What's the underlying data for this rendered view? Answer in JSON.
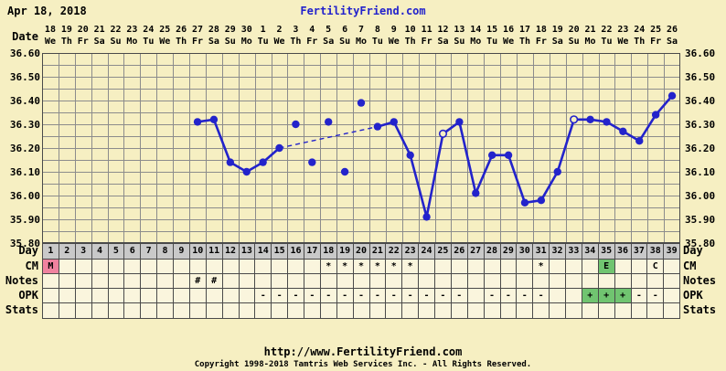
{
  "header": {
    "date_label": "Apr 18, 2018",
    "site_link": "FertilityFriend.com"
  },
  "axis": {
    "date_label": "Date",
    "dates": [
      "18",
      "19",
      "20",
      "21",
      "22",
      "23",
      "24",
      "25",
      "26",
      "27",
      "28",
      "29",
      "30",
      "1",
      "2",
      "3",
      "4",
      "5",
      "6",
      "7",
      "8",
      "9",
      "10",
      "11",
      "12",
      "13",
      "14",
      "15",
      "16",
      "17",
      "18",
      "19",
      "20",
      "21",
      "22",
      "23",
      "24",
      "25",
      "26"
    ],
    "weekdays": [
      "We",
      "Th",
      "Fr",
      "Sa",
      "Su",
      "Mo",
      "Tu",
      "We",
      "Th",
      "Fr",
      "Sa",
      "Su",
      "Mo",
      "Tu",
      "We",
      "Th",
      "Fr",
      "Sa",
      "Su",
      "Mo",
      "Tu",
      "We",
      "Th",
      "Fr",
      "Sa",
      "Su",
      "Mo",
      "Tu",
      "We",
      "Th",
      "Fr",
      "Sa",
      "Su",
      "Mo",
      "Tu",
      "We",
      "Th",
      "Fr",
      "Sa"
    ],
    "temp_labels": [
      "36.60",
      "36.50",
      "36.40",
      "36.30",
      "36.20",
      "36.10",
      "36.00",
      "35.90",
      "35.80"
    ]
  },
  "chart_data": {
    "type": "line",
    "title": "Basal body temperature by cycle day (deg C)",
    "days": 39,
    "ylim": [
      35.8,
      36.6
    ],
    "y_tick_step": 0.1,
    "grid_step": 0.05,
    "solid_segments": [
      [
        [
          10,
          36.31
        ],
        [
          11,
          36.32
        ],
        [
          12,
          36.14
        ],
        [
          13,
          36.1
        ],
        [
          14,
          36.14
        ],
        [
          15,
          36.2
        ]
      ],
      [
        [
          21,
          36.29
        ],
        [
          22,
          36.31
        ],
        [
          23,
          36.17
        ],
        [
          24,
          35.91
        ],
        [
          25,
          36.26
        ],
        [
          26,
          36.31
        ],
        [
          27,
          36.01
        ],
        [
          28,
          36.17
        ],
        [
          29,
          36.17
        ],
        [
          30,
          35.97
        ],
        [
          31,
          35.98
        ],
        [
          32,
          36.1
        ],
        [
          33,
          36.32
        ],
        [
          34,
          36.32
        ],
        [
          35,
          36.31
        ],
        [
          36,
          36.27
        ],
        [
          37,
          36.23
        ],
        [
          38,
          36.34
        ],
        [
          39,
          36.42
        ]
      ]
    ],
    "dashed_segments": [
      [
        [
          15,
          36.2
        ],
        [
          21,
          36.29
        ]
      ]
    ],
    "isolated_points": [
      [
        16,
        36.3
      ],
      [
        17,
        36.14
      ],
      [
        18,
        36.31
      ],
      [
        19,
        36.1
      ],
      [
        20,
        36.39
      ]
    ],
    "open_circle_points": [
      [
        25,
        36.26
      ],
      [
        33,
        36.32
      ]
    ]
  },
  "table": {
    "columns": 39,
    "rows": [
      {
        "label": "Day",
        "bg": "gray",
        "values": [
          "1",
          "2",
          "3",
          "4",
          "5",
          "6",
          "7",
          "8",
          "9",
          "10",
          "11",
          "12",
          "13",
          "14",
          "15",
          "16",
          "17",
          "18",
          "19",
          "20",
          "21",
          "22",
          "23",
          "24",
          "25",
          "26",
          "27",
          "28",
          "29",
          "30",
          "31",
          "32",
          "33",
          "34",
          "35",
          "36",
          "37",
          "38",
          "39"
        ],
        "highlights": {}
      },
      {
        "label": "CM",
        "bg": "cream",
        "values": [
          "M",
          "",
          "",
          "",
          "",
          "",
          "",
          "",
          "",
          "",
          "",
          "",
          "",
          "",
          "",
          "",
          "",
          "*",
          "*",
          "*",
          "*",
          "*",
          "*",
          "",
          "",
          "",
          "",
          "",
          "",
          "",
          "*",
          "",
          "",
          "",
          "E",
          "",
          "",
          "C",
          ""
        ],
        "highlights": {
          "0": "pink",
          "34": "green"
        }
      },
      {
        "label": "Notes",
        "bg": "cream",
        "values": [
          "",
          "",
          "",
          "",
          "",
          "",
          "",
          "",
          "",
          "#",
          "#",
          "",
          "",
          "",
          "",
          "",
          "",
          "",
          "",
          "",
          "",
          "",
          "",
          "",
          "",
          "",
          "",
          "",
          "",
          "",
          "",
          "",
          "",
          "",
          "",
          "",
          "",
          "",
          ""
        ],
        "highlights": {}
      },
      {
        "label": "OPK",
        "bg": "cream",
        "values": [
          "",
          "",
          "",
          "",
          "",
          "",
          "",
          "",
          "",
          "",
          "",
          "",
          "",
          "-",
          "-",
          "-",
          "-",
          "-",
          "-",
          "-",
          "-",
          "-",
          "-",
          "-",
          "-",
          "-",
          "",
          "-",
          "-",
          "-",
          "-",
          "",
          "",
          "+",
          "+",
          "+",
          "-",
          "-",
          ""
        ],
        "highlights": {
          "33": "green",
          "34": "green",
          "35": "green"
        }
      },
      {
        "label": "Stats",
        "bg": "cream",
        "values": [],
        "highlights": {}
      }
    ]
  },
  "footer": {
    "url": "http://www.FertilityFriend.com",
    "copyright": "Copyright 1998-2018 Tamtris Web Services Inc. - All Rights Reserved."
  },
  "colors": {
    "background": "#F6EFC2",
    "cell_background": "#FAF5DD",
    "day_row_background": "#C9C9C9",
    "grid": "#8C8C8C",
    "border": "#4a4a4a",
    "line": "#2323CB",
    "link": "#2222CC",
    "pink": "#F0829F",
    "green": "#70C470"
  }
}
